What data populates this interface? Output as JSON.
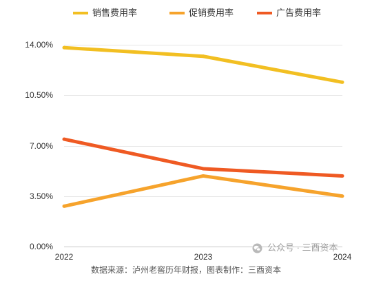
{
  "chart_data": {
    "type": "line",
    "categories": [
      "2022",
      "2023",
      "2024"
    ],
    "series": [
      {
        "name": "销售费用率",
        "values": [
          13.8,
          13.2,
          11.4
        ],
        "color": "#F2BF22"
      },
      {
        "name": "促销费用率",
        "values": [
          2.8,
          4.9,
          3.5
        ],
        "color": "#F6A32C"
      },
      {
        "name": "广告费用率",
        "values": [
          7.45,
          5.4,
          4.9
        ],
        "color": "#EF5A23"
      }
    ],
    "ylim": [
      0,
      14
    ],
    "ytick_values": [
      0,
      3.5,
      7,
      10.5,
      14
    ],
    "yticks": [
      "0.00%",
      "3.50%",
      "7.00%",
      "10.50%",
      "14.00%"
    ],
    "grid": true,
    "legend_position": "top"
  },
  "source_note": "数据来源：泸州老窖历年财报，图表制作：三酉资本",
  "watermark": {
    "text": "公众号 · 三酉资本",
    "icon": "wechat-icon"
  }
}
